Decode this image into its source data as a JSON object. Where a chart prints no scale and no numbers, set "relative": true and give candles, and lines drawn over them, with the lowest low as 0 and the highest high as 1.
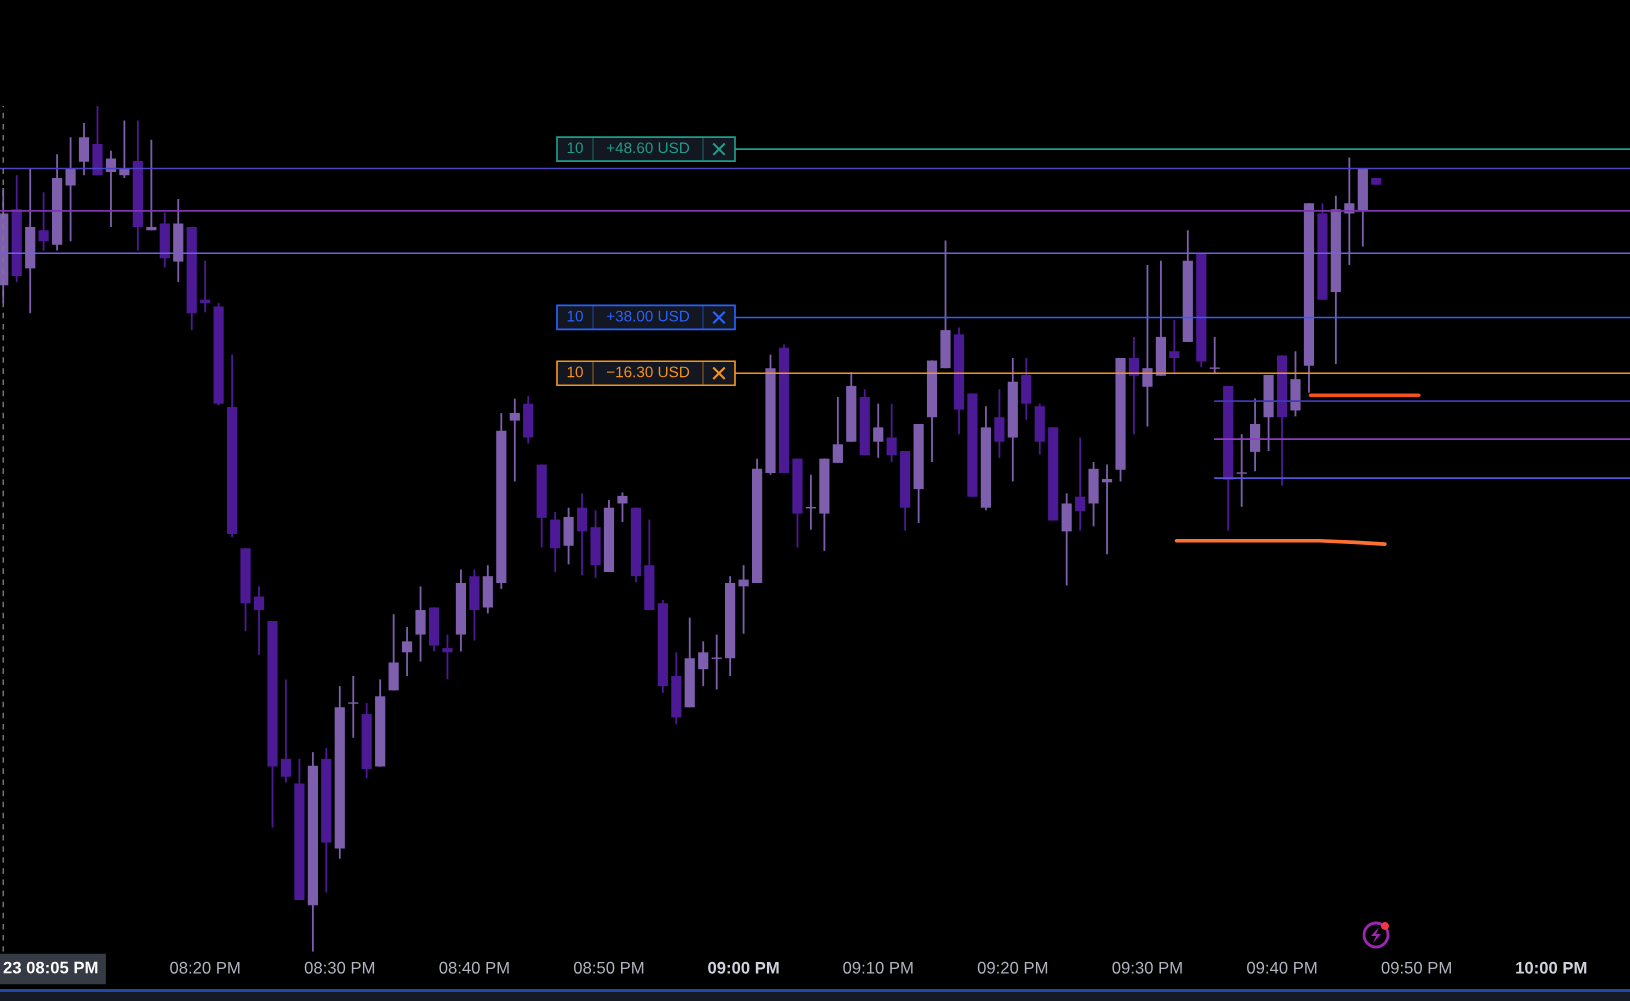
{
  "chart_data": {
    "type": "candlestick",
    "relative": true,
    "tick_labels": "x",
    "x": [
      20.0833,
      20.1,
      20.1167,
      20.1333,
      20.15,
      20.1667,
      20.1833,
      20.2,
      20.2167,
      20.2333,
      20.25,
      20.2667,
      20.2833,
      20.3,
      20.3167,
      20.3333,
      20.35,
      20.3667,
      20.3833,
      20.4,
      20.4167,
      20.4333,
      20.45,
      20.4667,
      20.4833,
      20.5,
      20.5167,
      20.5333,
      20.55,
      20.5667,
      20.5833,
      20.6,
      20.6167,
      20.6333,
      20.65,
      20.6667,
      20.6833,
      20.7,
      20.7167,
      20.7333,
      20.75,
      20.7667,
      20.7833,
      20.8,
      20.8167,
      20.8333,
      20.85,
      20.8667,
      20.8833,
      20.9,
      20.9167,
      20.9333,
      20.95,
      20.9667,
      20.9833,
      21,
      21.0167,
      21.0333,
      21.05,
      21.0667,
      21.0833,
      21.1,
      21.1167,
      21.1333,
      21.15,
      21.1667,
      21.1833,
      21.2,
      21.2167,
      21.2333,
      21.25,
      21.2667,
      21.2833,
      21.3,
      21.3167,
      21.3333,
      21.35,
      21.3667,
      21.3833,
      21.4,
      21.4167,
      21.4333,
      21.45,
      21.4667,
      21.4833,
      21.5,
      21.5167,
      21.5333,
      21.55,
      21.5667,
      21.5833,
      21.6,
      21.6167,
      21.6333,
      21.65,
      21.6667,
      21.6833,
      21.7,
      21.7167,
      21.7333,
      21.75,
      21.7667,
      21.7833
    ],
    "ohlc": [
      [
        0.788,
        0.903,
        0.767,
        0.873
      ],
      [
        0.878,
        0.918,
        0.792,
        0.799
      ],
      [
        0.808,
        0.926,
        0.755,
        0.857
      ],
      [
        0.853,
        0.898,
        0.829,
        0.84
      ],
      [
        0.836,
        0.943,
        0.829,
        0.915
      ],
      [
        0.906,
        0.963,
        0.84,
        0.926
      ],
      [
        0.934,
        0.98,
        0.918,
        0.963
      ],
      [
        0.955,
        1.0,
        0.918,
        0.918
      ],
      [
        0.922,
        0.947,
        0.857,
        0.938
      ],
      [
        0.918,
        0.983,
        0.915,
        0.926
      ],
      [
        0.935,
        0.983,
        0.829,
        0.857
      ],
      [
        0.853,
        0.96,
        0.853,
        0.857
      ],
      [
        0.861,
        0.874,
        0.809,
        0.82
      ],
      [
        0.816,
        0.89,
        0.792,
        0.861
      ],
      [
        0.857,
        0.857,
        0.735,
        0.755
      ],
      [
        0.771,
        0.817,
        0.756,
        0.767
      ],
      [
        0.763,
        0.767,
        0.646,
        0.648
      ],
      [
        0.644,
        0.706,
        0.49,
        0.494
      ],
      [
        0.477,
        0.477,
        0.379,
        0.412
      ],
      [
        0.42,
        0.432,
        0.351,
        0.404
      ],
      [
        0.391,
        0.391,
        0.147,
        0.219
      ],
      [
        0.228,
        0.322,
        0.2,
        0.207
      ],
      [
        0.199,
        0.228,
        0.061,
        0.061
      ],
      [
        0.055,
        0.236,
        0.0,
        0.22
      ],
      [
        0.228,
        0.241,
        0.07,
        0.129
      ],
      [
        0.122,
        0.314,
        0.11,
        0.289
      ],
      [
        0.294,
        0.326,
        0.253,
        0.294
      ],
      [
        0.281,
        0.294,
        0.205,
        0.216
      ],
      [
        0.219,
        0.322,
        0.219,
        0.302
      ],
      [
        0.309,
        0.399,
        0.309,
        0.342
      ],
      [
        0.354,
        0.384,
        0.326,
        0.367
      ],
      [
        0.375,
        0.432,
        0.343,
        0.404
      ],
      [
        0.407,
        0.407,
        0.355,
        0.362
      ],
      [
        0.359,
        0.375,
        0.322,
        0.354
      ],
      [
        0.375,
        0.452,
        0.355,
        0.436
      ],
      [
        0.444,
        0.452,
        0.368,
        0.404
      ],
      [
        0.407,
        0.457,
        0.4,
        0.444
      ],
      [
        0.436,
        0.637,
        0.429,
        0.616
      ],
      [
        0.628,
        0.654,
        0.556,
        0.637
      ],
      [
        0.648,
        0.657,
        0.601,
        0.608
      ],
      [
        0.576,
        0.576,
        0.478,
        0.513
      ],
      [
        0.511,
        0.52,
        0.449,
        0.477
      ],
      [
        0.48,
        0.525,
        0.458,
        0.514
      ],
      [
        0.525,
        0.542,
        0.445,
        0.497
      ],
      [
        0.502,
        0.522,
        0.442,
        0.457
      ],
      [
        0.449,
        0.534,
        0.449,
        0.525
      ],
      [
        0.53,
        0.543,
        0.508,
        0.539
      ],
      [
        0.525,
        0.525,
        0.437,
        0.444
      ],
      [
        0.457,
        0.511,
        0.404,
        0.404
      ],
      [
        0.412,
        0.416,
        0.306,
        0.314
      ],
      [
        0.326,
        0.354,
        0.269,
        0.277
      ],
      [
        0.289,
        0.395,
        0.289,
        0.347
      ],
      [
        0.334,
        0.367,
        0.314,
        0.354
      ],
      [
        0.347,
        0.375,
        0.31,
        0.347
      ],
      [
        0.347,
        0.444,
        0.326,
        0.436
      ],
      [
        0.432,
        0.457,
        0.376,
        0.44
      ],
      [
        0.436,
        0.583,
        0.436,
        0.571
      ],
      [
        0.566,
        0.706,
        0.564,
        0.69
      ],
      [
        0.714,
        0.718,
        0.566,
        0.566
      ],
      [
        0.583,
        0.583,
        0.478,
        0.518
      ],
      [
        0.525,
        0.564,
        0.499,
        0.525
      ],
      [
        0.518,
        0.583,
        0.474,
        0.583
      ],
      [
        0.578,
        0.656,
        0.578,
        0.6
      ],
      [
        0.603,
        0.685,
        0.603,
        0.669
      ],
      [
        0.656,
        0.665,
        0.587,
        0.587
      ],
      [
        0.603,
        0.648,
        0.584,
        0.62
      ],
      [
        0.608,
        0.648,
        0.579,
        0.587
      ],
      [
        0.592,
        0.592,
        0.498,
        0.525
      ],
      [
        0.547,
        0.624,
        0.507,
        0.624
      ],
      [
        0.632,
        0.699,
        0.579,
        0.699
      ],
      [
        0.69,
        0.841,
        0.69,
        0.735
      ],
      [
        0.73,
        0.738,
        0.612,
        0.641
      ],
      [
        0.66,
        0.66,
        0.538,
        0.538
      ],
      [
        0.525,
        0.645,
        0.522,
        0.62
      ],
      [
        0.632,
        0.665,
        0.584,
        0.603
      ],
      [
        0.608,
        0.702,
        0.556,
        0.674
      ],
      [
        0.682,
        0.702,
        0.629,
        0.648
      ],
      [
        0.645,
        0.648,
        0.588,
        0.603
      ],
      [
        0.62,
        0.62,
        0.51,
        0.51
      ],
      [
        0.497,
        0.542,
        0.433,
        0.53
      ],
      [
        0.538,
        0.608,
        0.498,
        0.521
      ],
      [
        0.53,
        0.579,
        0.503,
        0.571
      ],
      [
        0.555,
        0.576,
        0.47,
        0.559
      ],
      [
        0.57,
        0.702,
        0.556,
        0.702
      ],
      [
        0.702,
        0.727,
        0.612,
        0.681
      ],
      [
        0.668,
        0.812,
        0.621,
        0.69
      ],
      [
        0.681,
        0.817,
        0.681,
        0.727
      ],
      [
        0.71,
        0.747,
        0.683,
        0.702
      ],
      [
        0.721,
        0.853,
        0.721,
        0.817
      ],
      [
        0.825,
        0.825,
        0.691,
        0.698
      ],
      [
        0.69,
        0.727,
        0.683,
        0.69
      ],
      [
        0.669,
        0.669,
        0.498,
        0.558
      ],
      [
        0.566,
        0.612,
        0.526,
        0.566
      ],
      [
        0.591,
        0.654,
        0.568,
        0.624
      ],
      [
        0.632,
        0.682,
        0.592,
        0.682
      ],
      [
        0.705,
        0.705,
        0.551,
        0.632
      ],
      [
        0.64,
        0.71,
        0.633,
        0.677
      ],
      [
        0.693,
        0.885,
        0.661,
        0.885
      ],
      [
        0.873,
        0.885,
        0.771,
        0.771
      ],
      [
        0.78,
        0.894,
        0.695,
        0.878
      ],
      [
        0.873,
        0.939,
        0.812,
        0.885
      ],
      [
        0.877,
        0.926,
        0.834,
        0.926
      ],
      [
        0.915,
        0.915,
        0.907,
        0.907
      ]
    ],
    "colors": [
      "#7e5fae",
      "#4d1a96",
      "#7e5fae",
      "#4d1a96",
      "#7e5fae",
      "#7e5fae",
      "#7e5fae",
      "#4d1a96",
      "#7e5fae",
      "#7e5fae",
      "#4d1a96",
      "#7e5fae",
      "#4d1a96",
      "#7e5fae",
      "#4d1a96",
      "#4d1a96",
      "#4d1a96",
      "#4d1a96",
      "#4d1a96",
      "#4d1a96",
      "#4d1a96",
      "#4d1a96",
      "#4d1a96",
      "#7e5fae",
      "#4d1a96",
      "#7e5fae",
      "#7e5fae",
      "#4d1a96",
      "#7e5fae",
      "#7e5fae",
      "#7e5fae",
      "#7e5fae",
      "#4d1a96",
      "#4d1a96",
      "#7e5fae",
      "#4d1a96",
      "#7e5fae",
      "#7e5fae",
      "#7e5fae",
      "#4d1a96",
      "#4d1a96",
      "#4d1a96",
      "#7e5fae",
      "#4d1a96",
      "#4d1a96",
      "#7e5fae",
      "#7e5fae",
      "#4d1a96",
      "#4d1a96",
      "#4d1a96",
      "#4d1a96",
      "#7e5fae",
      "#7e5fae",
      "#7e5fae",
      "#7e5fae",
      "#7e5fae",
      "#7e5fae",
      "#7e5fae",
      "#4d1a96",
      "#4d1a96",
      "#7e5fae",
      "#7e5fae",
      "#7e5fae",
      "#7e5fae",
      "#4d1a96",
      "#7e5fae",
      "#4d1a96",
      "#4d1a96",
      "#7e5fae",
      "#7e5fae",
      "#7e5fae",
      "#4d1a96",
      "#4d1a96",
      "#7e5fae",
      "#4d1a96",
      "#7e5fae",
      "#4d1a96",
      "#4d1a96",
      "#4d1a96",
      "#7e5fae",
      "#4d1a96",
      "#7e5fae",
      "#7e5fae",
      "#7e5fae",
      "#4d1a96",
      "#7e5fae",
      "#7e5fae",
      "#4d1a96",
      "#7e5fae",
      "#4d1a96",
      "#7e5fae",
      "#4d1a96",
      "#7e5fae",
      "#7e5fae",
      "#7e5fae",
      "#4d1a96",
      "#7e5fae",
      "#7e5fae",
      "#4d1a96",
      "#7e5fae",
      "#7e5fae",
      "#7e5fae",
      "#4d1a96"
    ],
    "xlim": [
      20.0793,
      22.0975
    ],
    "xticks": [
      {
        "value": 20.3333,
        "label": "08:20 PM"
      },
      {
        "value": 20.5,
        "label": "08:30 PM"
      },
      {
        "value": 20.6667,
        "label": "08:40 PM"
      },
      {
        "value": 20.8333,
        "label": "08:50 PM"
      },
      {
        "value": 21,
        "label": "09:00 PM"
      },
      {
        "value": 21.1667,
        "label": "09:10 PM"
      },
      {
        "value": 21.3333,
        "label": "09:20 PM"
      },
      {
        "value": 21.5,
        "label": "09:30 PM"
      },
      {
        "value": 21.6667,
        "label": "09:40 PM"
      },
      {
        "value": 21.8333,
        "label": "09:50 PM"
      },
      {
        "value": 22,
        "label": "10:00 PM"
      }
    ],
    "series": [
      {
        "type": "line",
        "x": [
          21.5833,
          22.0975
        ],
        "values": [
          0.651,
          0.651
        ],
        "color": "#3f39b4"
      },
      {
        "type": "line",
        "x": [
          21.5833,
          22.0975
        ],
        "values": [
          0.606,
          0.606
        ],
        "color": "#8c3dc4"
      },
      {
        "type": "line",
        "x": [
          21.5833,
          22.0975
        ],
        "values": [
          0.56,
          0.56
        ],
        "color": "#5a52da"
      },
      {
        "type": "line",
        "x": [
          21.702,
          21.836
        ],
        "values": [
          0.658,
          0.658
        ],
        "color": "#f4511e"
      },
      {
        "type": "line",
        "x": [
          21.536,
          21.713,
          21.758,
          21.794
        ],
        "values": [
          0.486,
          0.486,
          0.484,
          0.482
        ],
        "color": "#ff7033"
      }
    ],
    "ref_lines": [
      {
        "axis": "y",
        "value": 0.949,
        "label": "10 +48.60 USD",
        "color": "#1f9e89"
      },
      {
        "axis": "y",
        "value": 0.926,
        "color": "#4b45c2"
      },
      {
        "axis": "y",
        "value": 0.876,
        "color": "#7b35b0"
      },
      {
        "axis": "y",
        "value": 0.826,
        "color": "#6a62e0"
      },
      {
        "axis": "y",
        "value": 0.75,
        "label": "10 +38.00 USD",
        "color": "#2962ff"
      },
      {
        "axis": "y",
        "value": 0.684,
        "label": "10 −16.30 USD",
        "color": "#f7931a"
      },
      {
        "axis": "x",
        "value": 20.0833,
        "color": "#787b86",
        "line_style": "dashed"
      }
    ],
    "annotations": [
      "23 08:05 PM"
    ]
  }
}
